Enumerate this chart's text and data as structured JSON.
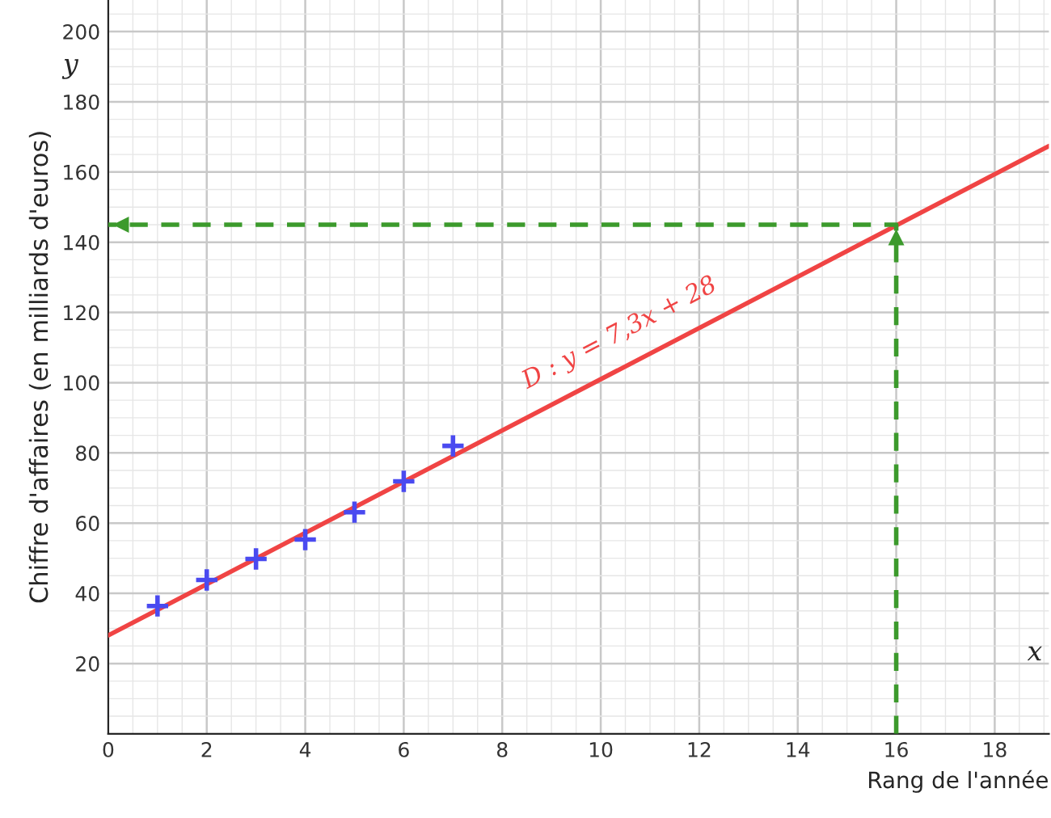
{
  "chart_data": {
    "type": "scatter",
    "xlabel": "Rang de l'année",
    "ylabel": "Chiffre d'affaires (en milliards d'euros)",
    "xlim": [
      0,
      19.1
    ],
    "ylim": [
      0,
      209
    ],
    "xticks": [
      0,
      2,
      4,
      6,
      8,
      10,
      12,
      14,
      16,
      18
    ],
    "yticks": [
      20,
      40,
      60,
      80,
      100,
      120,
      140,
      160,
      180,
      200
    ],
    "grid": true,
    "marker": "cross",
    "series": [
      {
        "color": "#4a4af0",
        "x": [
          1,
          2,
          3,
          4,
          5,
          6,
          7
        ],
        "values": [
          36.4,
          43.8,
          49.8,
          55.3,
          63.1,
          71.9,
          82
        ]
      },
      {
        "type": "line",
        "color": "#f04444",
        "marker": "none",
        "x": [
          0,
          19.1
        ],
        "values": [
          28,
          167.4
        ]
      },
      {
        "type": "line",
        "color": "#3c9a2c",
        "marker": "none",
        "line_style": "dashed",
        "x": [
          16,
          16,
          0
        ],
        "values": [
          0,
          145,
          145
        ]
      }
    ],
    "annotations": [
      {
        "text": "D : y = 7,3x + 28",
        "x": 10.5,
        "y": 104.6
      },
      "y",
      "x"
    ]
  }
}
